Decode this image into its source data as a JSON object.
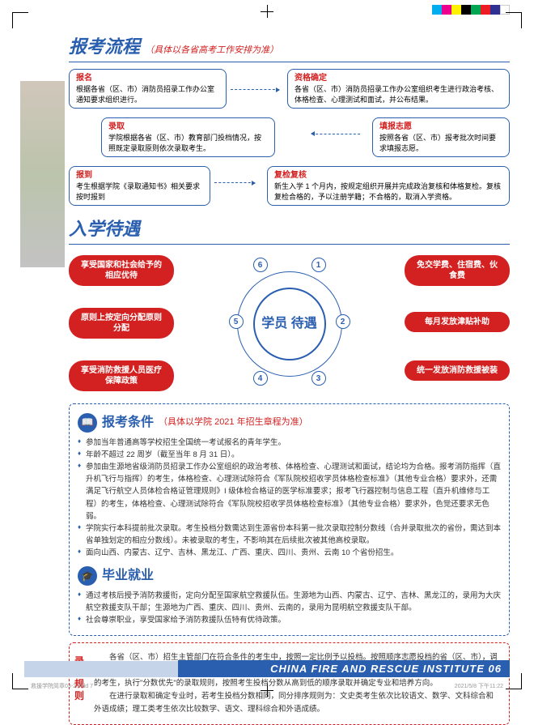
{
  "colorBar": [
    "#00aeef",
    "#ec008c",
    "#fff200",
    "#000000",
    "#00a651",
    "#ed1c24",
    "#2e3192",
    "#ffffff"
  ],
  "sections": {
    "flow": {
      "title": "报考流程",
      "sub": "（具体以各省高考工作安排为准）"
    },
    "treat": {
      "title": "入学待遇"
    },
    "cond": {
      "title": "报考条件",
      "sub": "（具体以学院 2021 年招生章程为准）"
    },
    "grad": {
      "title": "毕业就业"
    },
    "rules": {
      "label": "录取规则"
    }
  },
  "flow": {
    "baoming": {
      "t": "报名",
      "d": "根据各省（区、市）消防员招录工作办公室通知要求组织进行。"
    },
    "zige": {
      "t": "资格确定",
      "d": "各省（区、市）消防员招录工作办公室组织考生进行政治考核、体格检查、心理测试和面试，并公布结果。"
    },
    "luqu": {
      "t": "录取",
      "d": "学院根据各省（区、市）教育部门投档情况，按照既定录取原则依次录取考生。"
    },
    "tianbao": {
      "t": "填报志愿",
      "d": "按照各省（区、市）报考批次时间要求填报志愿。"
    },
    "baodao": {
      "t": "报到",
      "d": "考生根据学院《录取通知书》相关要求按时报到"
    },
    "fuhe": {
      "t": "复检复核",
      "d": "新生入学 1 个月内，按规定组织开展并完成政治复核和体格复检。复核复检合格的，予以注册学籍；不合格的，取消入学资格。"
    }
  },
  "pills": [
    "享受国家和社会给予的相应优待",
    "免交学费、住宿费、伙食费",
    "原则上按定向分配原则分配",
    "每月发放津贴补助",
    "享受消防救援人员医疗保障政策",
    "统一发放消防救援被装"
  ],
  "center": "学员\n待遇",
  "cond": [
    "参加当年普通高等学校招生全国统一考试报名的青年学生。",
    "年龄不超过 22 周岁（截至当年 8 月 31 日）。",
    "参加由生源地省级消防员招录工作办公室组织的政治考核、体格检查、心理测试和面试，结论均为合格。报考消防指挥（直升机飞行与指挥）的考生，体格检查、心理测试除符合《军队院校招收学员体格检查标准》（其他专业合格）要求外，还需满足飞行航空人员体检合格证管理规则》I 级体检合格证的医学标准要求；报考飞行器控制与信息工程（直升机维修与工程）的考生，体格检查、心理测试除符合《军队院校招收学员体格检查标准》（其他专业合格）要求外，色觉还要求无色弱。",
    "学院实行本科提前批次录取。考生投档分数需达到生源省份本科第一批次录取控制分数线（合并录取批次的省份，需达到本省单独划定的相应分数线）。未被录取的考生，不影响其在后续批次被其他高校录取。",
    "面向山西、内蒙古、辽宁、吉林、黑龙江、广西、重庆、四川、贵州、云南 10 个省份招生。"
  ],
  "grad": [
    "通过考核后授予消防救援衔，定向分配至国家航空救援队伍。生源地为山西、内蒙古、辽宁、吉林、黑龙江的，录用为大庆航空救援支队干部；生源地为广西、重庆、四川、贵州、云南的，录用为昆明航空救援支队干部。",
    "社会尊崇职业，享受国家给予消防救援队伍特有优待政策。"
  ],
  "rules": [
    "各省（区、市）招生主管部门在符合条件的考生中，按照一定比例予以投档。按照顺序志愿投档的省（区、市），调档比例原则上控制在 120% 以内；按照平行志愿投档的省（区、市），调档比例原则上控制在 105% 以内。符合调档要求的考生，执行\"分数优先\"的录取规则，按照考生投档分数从高到低的顺序录取并确定专业和培养方向。",
    "在进行录取和确定专业时，若考生投档分数相同，同分排序规则为：文史类考生依次比较语文、数学、文科综合和外语成绩；理工类考生依次比较数学、语文、理科综合和外语成绩。"
  ],
  "footer": "CHINA FIRE AND RESCUE INSTITUTE 06",
  "meta": {
    "l": "救援学院简章03-2.indd 7",
    "r": "2021/5/8 下午11:22"
  }
}
